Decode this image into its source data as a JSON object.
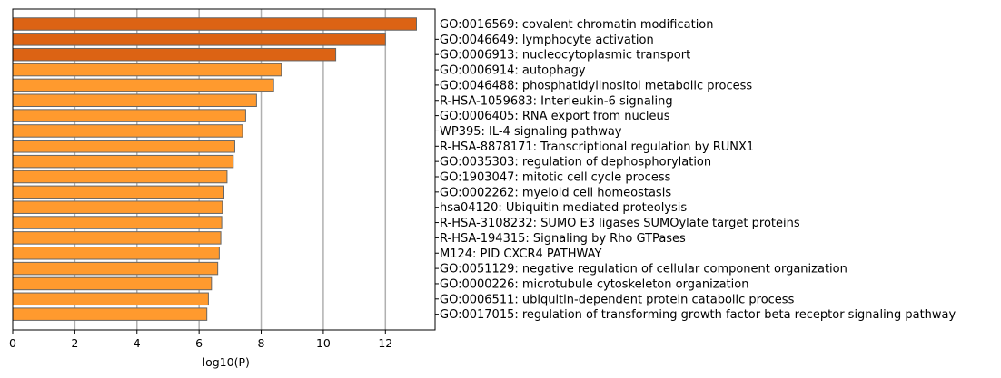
{
  "chart_data": {
    "type": "bar",
    "orientation": "horizontal",
    "title": "",
    "xlabel": "-log10(P)",
    "ylabel": "",
    "xlim": [
      0,
      13.6
    ],
    "xticks": [
      0,
      2,
      4,
      6,
      8,
      10,
      12
    ],
    "grid": "vertical",
    "colors": {
      "high": "#dc6314",
      "normal": "#ff9a2e",
      "edge": "#666666",
      "grid": "#b0b0b0"
    },
    "categories": [
      "GO:0016569: covalent chromatin modification",
      "GO:0046649: lymphocyte activation",
      "GO:0006913: nucleocytoplasmic transport",
      "GO:0006914: autophagy",
      "GO:0046488: phosphatidylinositol metabolic process",
      "R-HSA-1059683: Interleukin-6 signaling",
      "GO:0006405: RNA export from nucleus",
      "WP395: IL-4 signaling pathway",
      "R-HSA-8878171: Transcriptional regulation by RUNX1",
      "GO:0035303: regulation of dephosphorylation",
      "GO:1903047: mitotic cell cycle process",
      "GO:0002262: myeloid cell homeostasis",
      "hsa04120: Ubiquitin mediated proteolysis",
      "R-HSA-3108232: SUMO E3 ligases SUMOylate target proteins",
      "R-HSA-194315: Signaling by Rho GTPases",
      "M124: PID CXCR4 PATHWAY",
      "GO:0051129: negative regulation of cellular component organization",
      "GO:0000226: microtubule cytoskeleton organization",
      "GO:0006511: ubiquitin-dependent protein catabolic process",
      "GO:0017015: regulation of transforming growth factor beta receptor signaling pathway"
    ],
    "values": [
      13.0,
      12.0,
      10.4,
      8.65,
      8.4,
      7.85,
      7.5,
      7.4,
      7.15,
      7.1,
      6.9,
      6.8,
      6.75,
      6.73,
      6.7,
      6.65,
      6.6,
      6.4,
      6.3,
      6.25
    ],
    "highlight": [
      true,
      true,
      true,
      false,
      false,
      false,
      false,
      false,
      false,
      false,
      false,
      false,
      false,
      false,
      false,
      false,
      false,
      false,
      false,
      false
    ]
  }
}
